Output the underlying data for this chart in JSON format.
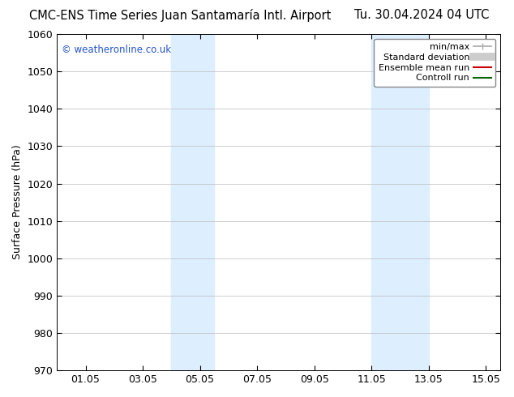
{
  "title_left": "CMC-ENS Time Series Juan Santamaría Intl. Airport",
  "title_right": "Tu. 30.04.2024 04 UTC",
  "ylabel": "Surface Pressure (hPa)",
  "ylim": [
    970,
    1060
  ],
  "yticks": [
    970,
    980,
    990,
    1000,
    1010,
    1020,
    1030,
    1040,
    1050,
    1060
  ],
  "xlim_start": 0.0,
  "xlim_end": 15.5,
  "xtick_labels": [
    "01.05",
    "03.05",
    "05.05",
    "07.05",
    "09.05",
    "11.05",
    "13.05",
    "15.05"
  ],
  "xtick_positions": [
    1,
    3,
    5,
    7,
    9,
    11,
    13,
    15
  ],
  "shaded_regions": [
    {
      "xmin": 4.0,
      "xmax": 5.5
    },
    {
      "xmin": 11.0,
      "xmax": 13.0
    }
  ],
  "shaded_color": "#ddeeff",
  "watermark_text": "© weatheronline.co.uk",
  "watermark_color": "#2255cc",
  "legend_items": [
    {
      "label": "min/max",
      "color": "#aaaaaa",
      "lw": 1.2
    },
    {
      "label": "Standard deviation",
      "color": "#cccccc",
      "lw": 7
    },
    {
      "label": "Ensemble mean run",
      "color": "#cc0000",
      "lw": 1.5
    },
    {
      "label": "Controll run",
      "color": "#006600",
      "lw": 1.5
    }
  ],
  "bg_color": "#ffffff",
  "grid_color": "#bbbbbb",
  "title_fontsize": 10.5,
  "axis_fontsize": 9,
  "tick_fontsize": 9,
  "legend_fontsize": 8
}
